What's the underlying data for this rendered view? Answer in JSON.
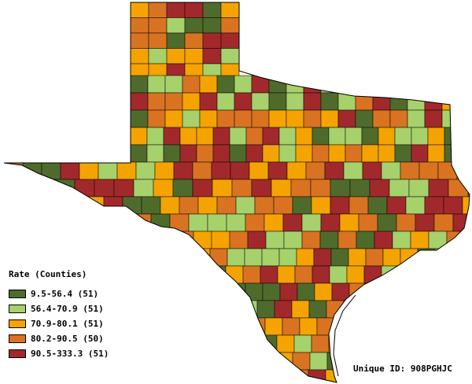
{
  "map": {
    "region": "Texas",
    "legend": {
      "title": "Rate (Counties)",
      "classes": [
        {
          "label": "9.5-56.4 (51)",
          "color": "#4f6b2c"
        },
        {
          "label": "56.4-70.9 (51)",
          "color": "#a6d16b"
        },
        {
          "label": "70.9-80.1 (51)",
          "color": "#f5a300"
        },
        {
          "label": "80.2-90.5 (50)",
          "color": "#d97321"
        },
        {
          "label": "90.5-333.3 (51)",
          "color": "#a2292b"
        }
      ]
    },
    "unique_id": "Unique ID: 908PGHJC"
  }
}
